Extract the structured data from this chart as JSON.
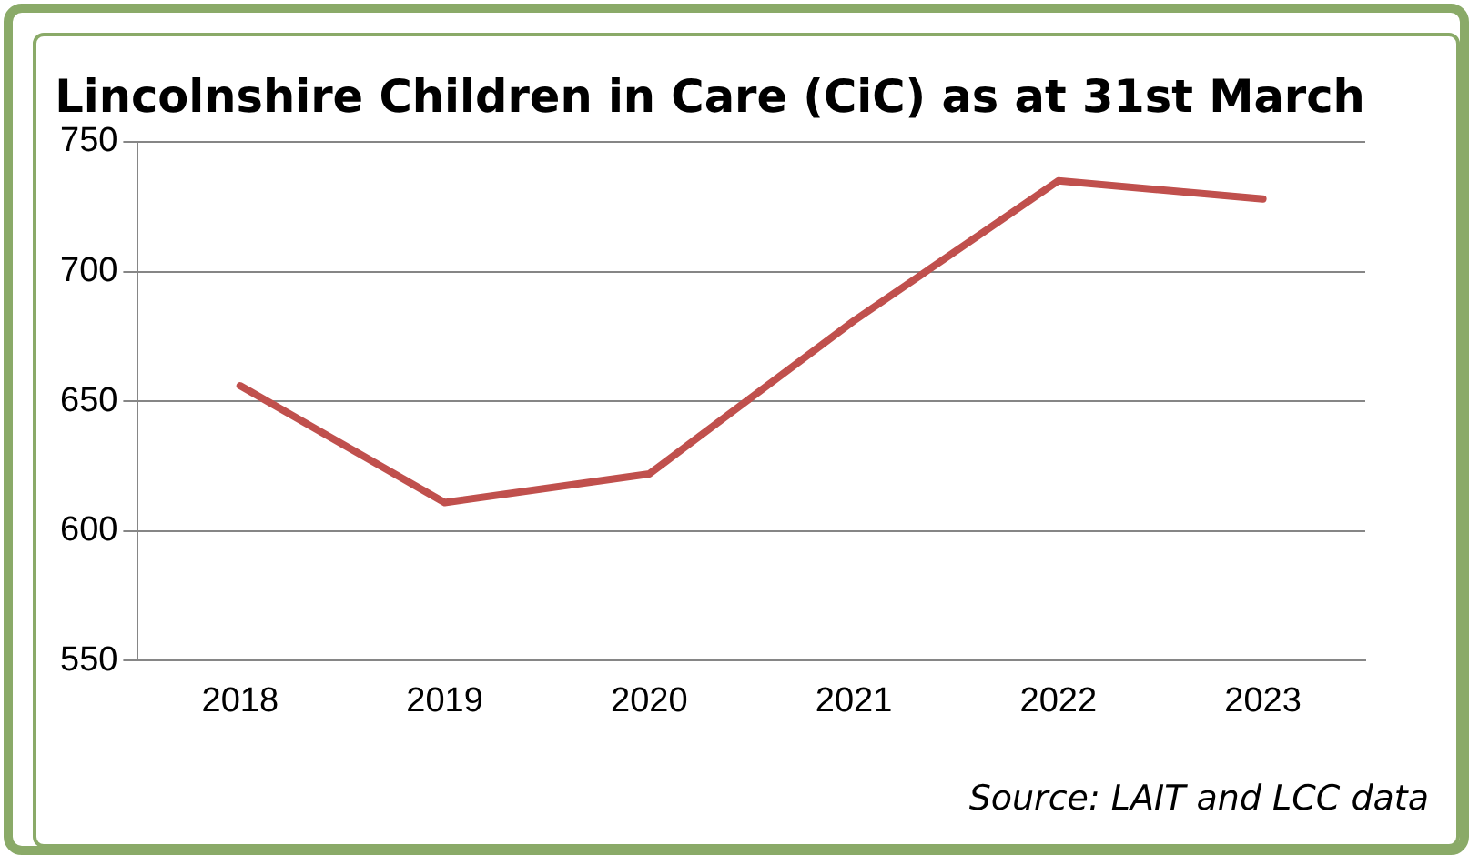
{
  "chart_data": {
    "type": "line",
    "title": "Lincolnshire Children in Care (CiC) as at 31st March",
    "categories": [
      "2018",
      "2019",
      "2020",
      "2021",
      "2022",
      "2023"
    ],
    "series": [
      {
        "color": "#c0504d",
        "values": [
          656,
          611,
          622,
          681,
          735,
          728
        ]
      }
    ],
    "ylim": [
      550,
      750
    ],
    "yticks": [
      550,
      600,
      650,
      700,
      750
    ],
    "grid": "y",
    "legend": false,
    "marker": "none",
    "annotations": [
      "Source: LAIT and LCC data"
    ]
  }
}
